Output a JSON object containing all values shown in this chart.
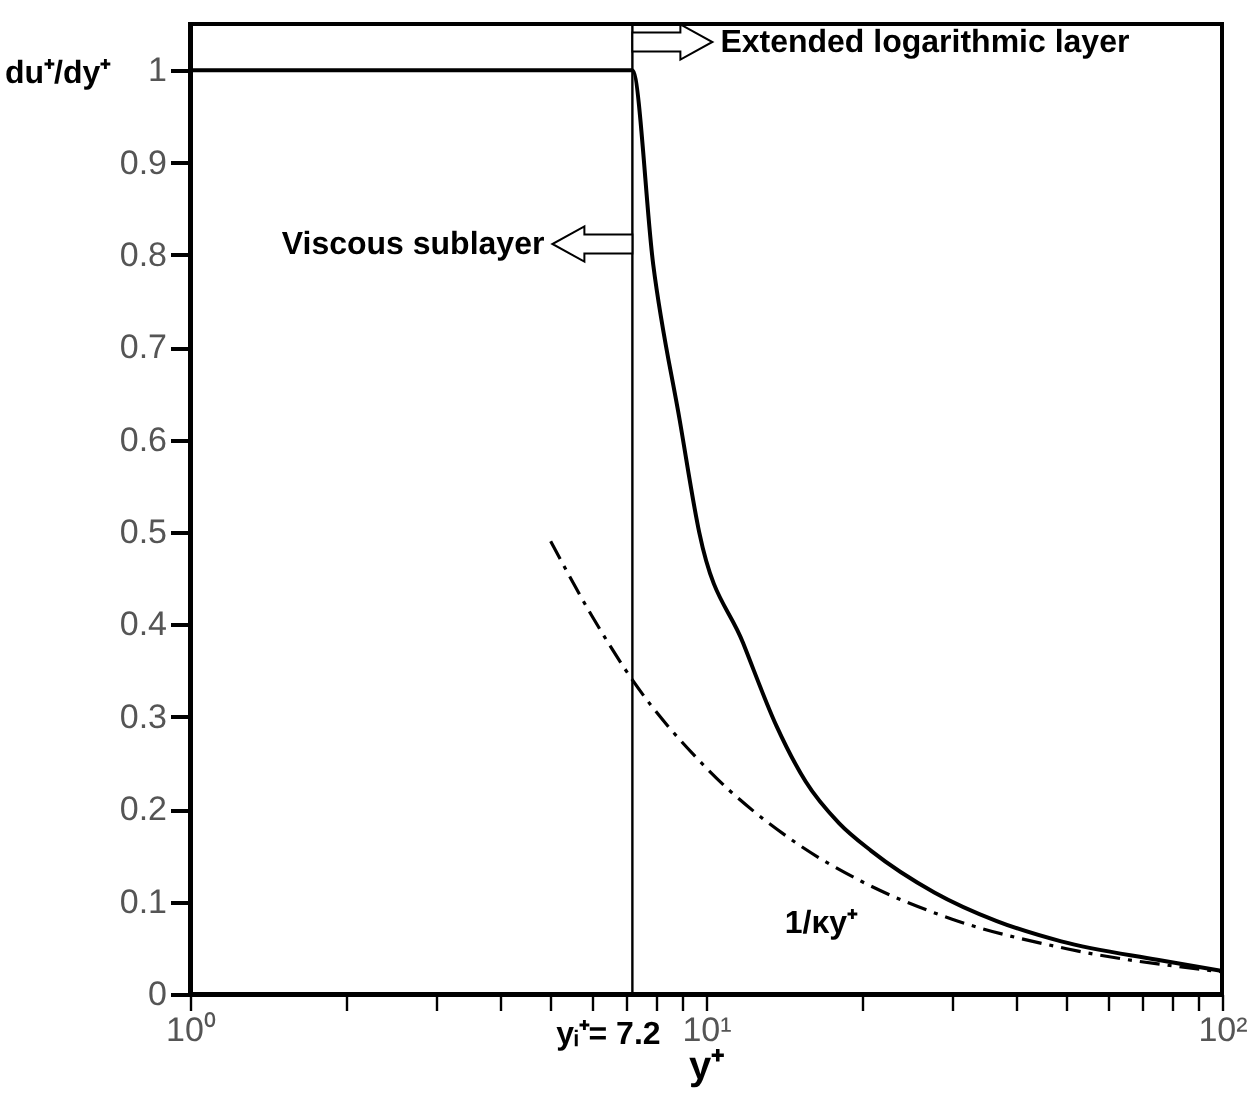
{
  "chart_data": {
    "type": "line",
    "xlabel": "y⁺",
    "ylabel": "du⁺/dy⁺",
    "log": "x",
    "xlim": [
      1,
      100
    ],
    "ylim": [
      0,
      1.05
    ],
    "xticks": [
      {
        "value": 1,
        "label": "10⁰"
      },
      {
        "value": 2,
        "label": null
      },
      {
        "value": 3,
        "label": null
      },
      {
        "value": 4,
        "label": null
      },
      {
        "value": 5,
        "label": null
      },
      {
        "value": 6,
        "label": null
      },
      {
        "value": 7,
        "label": null
      },
      {
        "value": 8,
        "label": null
      },
      {
        "value": 9,
        "label": null
      },
      {
        "value": 10,
        "label": "10¹"
      },
      {
        "value": 20,
        "label": null
      },
      {
        "value": 30,
        "label": null
      },
      {
        "value": 40,
        "label": null
      },
      {
        "value": 50,
        "label": null
      },
      {
        "value": 60,
        "label": null
      },
      {
        "value": 70,
        "label": null
      },
      {
        "value": 80,
        "label": null
      },
      {
        "value": 90,
        "label": null
      },
      {
        "value": 100,
        "label": "10²"
      }
    ],
    "yticks": [
      0,
      0.1,
      0.2,
      0.3,
      0.4,
      0.5,
      0.6,
      0.7,
      0.8,
      0.9,
      1
    ],
    "grid": false,
    "marker": "none",
    "series": [
      {
        "color": "#000000",
        "line_style": "solid",
        "x": [
          1,
          7.2,
          7.9,
          8.9,
          9.7,
          11.8,
          13.7,
          15.6,
          18.1,
          20.9,
          27.7,
          36.6,
          48.8,
          74.9,
          100
        ],
        "values": [
          1,
          1,
          0.79,
          0.62,
          0.5,
          0.38,
          0.29,
          0.23,
          0.185,
          0.155,
          0.11,
          0.079,
          0.057,
          0.037,
          0.025
        ]
      },
      {
        "name": "1/κy⁺",
        "color": "#000000",
        "line_style": "dashed",
        "x": [
          5,
          6,
          7.2,
          10,
          15,
          20,
          30,
          50,
          100
        ],
        "values": [
          0.49,
          0.41,
          0.34,
          0.245,
          0.163,
          0.122,
          0.081,
          0.049,
          0.024
        ]
      }
    ],
    "ref_lines": [
      {
        "axis": "x",
        "value": 7.2,
        "label": "yᵢ⁺= 7.2",
        "color": "#000000"
      }
    ],
    "annotations": [
      "Extended logarithmic layer",
      "Viscous sublayer"
    ]
  }
}
